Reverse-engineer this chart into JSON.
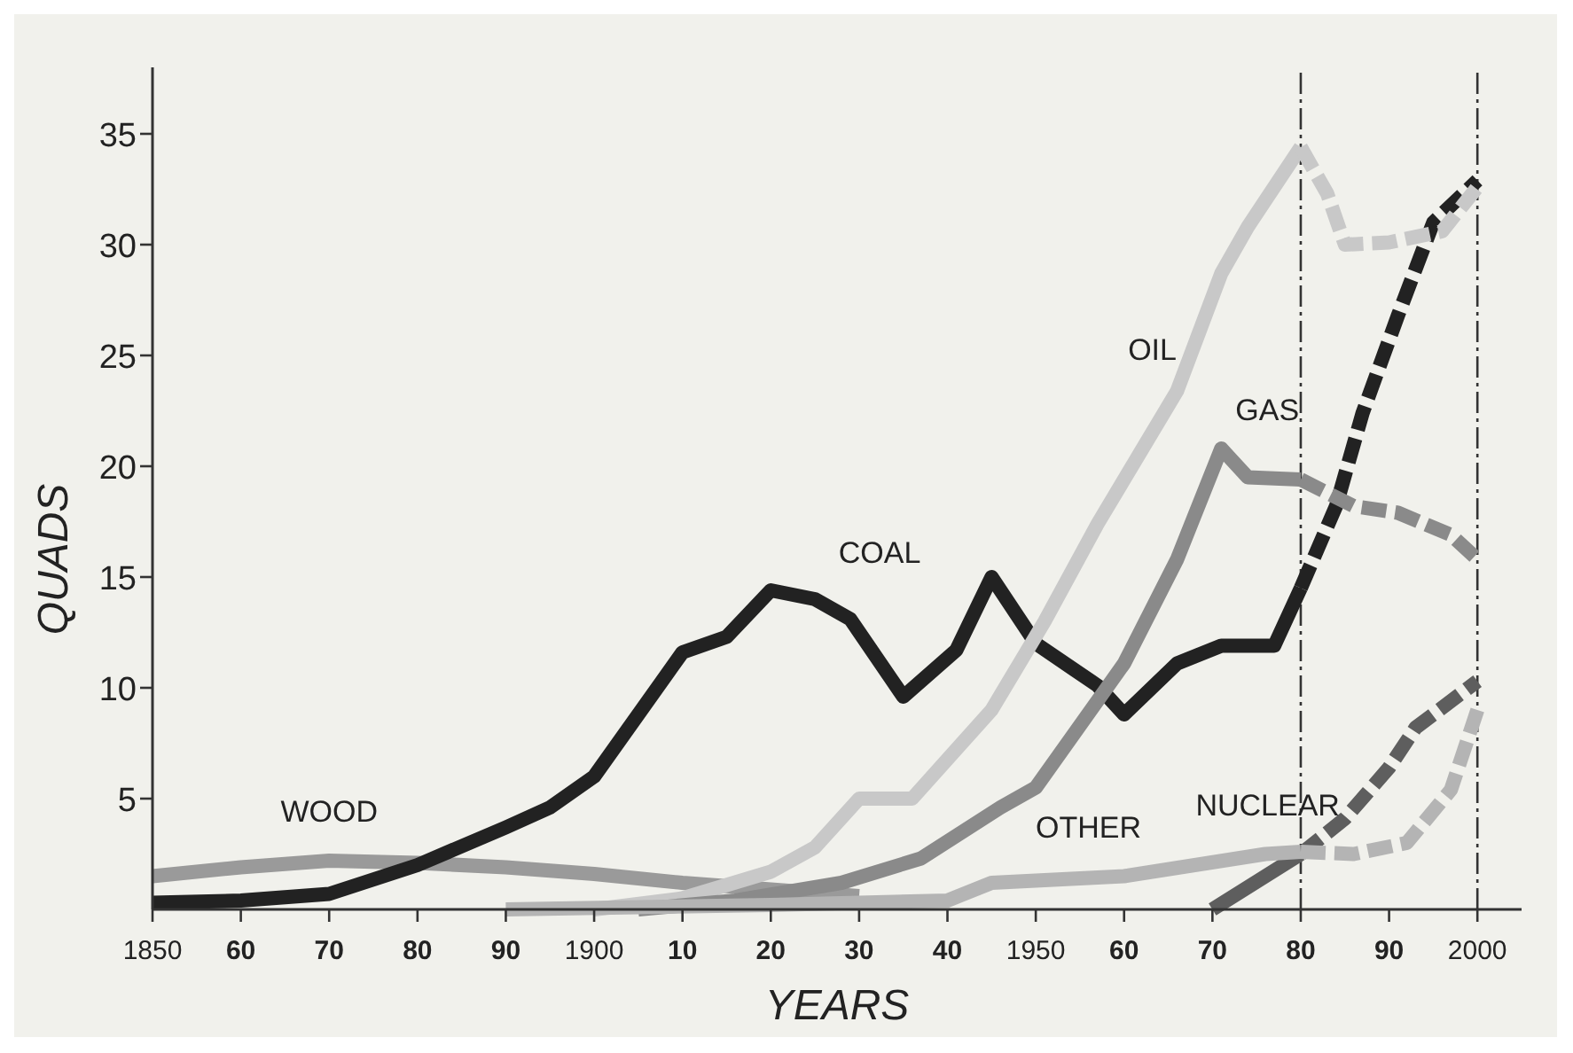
{
  "chart_data": {
    "type": "line",
    "xlabel": "YEARS",
    "ylabel": "QUADS",
    "xlim": [
      1850,
      2005
    ],
    "ylim": [
      0,
      38
    ],
    "xticks": [
      1850,
      {
        "value": 1860,
        "label": "60"
      },
      {
        "value": 1870,
        "label": "70"
      },
      {
        "value": 1880,
        "label": "80"
      },
      {
        "value": 1890,
        "label": "90"
      },
      1900,
      {
        "value": 1910,
        "label": "10"
      },
      {
        "value": 1920,
        "label": "20"
      },
      {
        "value": 1930,
        "label": "30"
      },
      {
        "value": 1940,
        "label": "40"
      },
      1950,
      {
        "value": 1960,
        "label": "60"
      },
      {
        "value": 1970,
        "label": "70"
      },
      {
        "value": 1980,
        "label": "80"
      },
      {
        "value": 1990,
        "label": "90"
      },
      2000
    ],
    "yticks": [
      5,
      10,
      15,
      20,
      25,
      30,
      35
    ],
    "grid": false,
    "ref_lines": [
      {
        "axis": "x",
        "value": 1980,
        "line_style": "dashed",
        "color": "#333333"
      },
      {
        "axis": "x",
        "value": 2000,
        "line_style": "dashed",
        "color": "#333333"
      }
    ],
    "series": [
      {
        "name": "WOOD",
        "color": "#9a9a9a",
        "x": [
          1850,
          1860,
          1870,
          1880,
          1890,
          1900,
          1910,
          1920,
          1930
        ],
        "values": [
          1.5,
          1.9,
          2.2,
          2.1,
          1.9,
          1.6,
          1.2,
          0.9,
          0.6
        ]
      },
      {
        "name": "COAL",
        "color": "#222222",
        "x": [
          1850,
          1860,
          1870,
          1880,
          1890,
          1895,
          1900,
          1910,
          1915,
          1920,
          1925,
          1929,
          1935,
          1941,
          1945,
          1950,
          1957,
          1960,
          1966,
          1971,
          1977,
          1980
        ],
        "values": [
          0.3,
          0.4,
          0.7,
          2.0,
          3.7,
          4.6,
          6.0,
          11.6,
          12.3,
          14.4,
          14.0,
          13.1,
          9.6,
          11.7,
          15.0,
          12.0,
          10.1,
          8.8,
          11.1,
          11.9,
          11.9,
          14.5
        ]
      },
      {
        "color": "#222222",
        "line_style": "dashed",
        "x": [
          1980,
          1984,
          1987,
          1991,
          1995,
          2000
        ],
        "values": [
          14.5,
          18.2,
          22.4,
          26.8,
          31.0,
          32.9
        ]
      },
      {
        "name": "OIL",
        "color": "#c8c8c8",
        "x": [
          1900,
          1910,
          1920,
          1925,
          1930,
          1936,
          1945,
          1951,
          1957,
          1966,
          1971,
          1974,
          1980
        ],
        "values": [
          0,
          0.5,
          1.7,
          2.8,
          5.0,
          5.0,
          9.0,
          13.0,
          17.4,
          23.4,
          28.7,
          30.8,
          34.4
        ]
      },
      {
        "color": "#c8c8c8",
        "line_style": "dashed",
        "x": [
          1980,
          1983,
          1985,
          1990,
          1996,
          2000
        ],
        "values": [
          34.4,
          32.3,
          30.0,
          30.1,
          30.6,
          32.6
        ]
      },
      {
        "name": "GAS",
        "color": "#8a8a8a",
        "x": [
          1905,
          1916,
          1928,
          1937,
          1946,
          1950,
          1960,
          1966,
          1971,
          1974,
          1980
        ],
        "values": [
          0,
          0.4,
          1.2,
          2.3,
          4.6,
          5.5,
          11.1,
          15.8,
          20.8,
          19.5,
          19.4
        ]
      },
      {
        "color": "#8a8a8a",
        "line_style": "dashed",
        "x": [
          1980,
          1986,
          1991,
          1997,
          2000
        ],
        "values": [
          19.4,
          18.2,
          17.9,
          16.9,
          15.8
        ]
      },
      {
        "name": "NUCLEAR",
        "color": "#5e5e5e",
        "x": [
          1970,
          1976,
          1980
        ],
        "values": [
          0,
          1.5,
          2.5
        ]
      },
      {
        "color": "#5e5e5e",
        "line_style": "dashed",
        "x": [
          1980,
          1985,
          1990,
          1993,
          2000
        ],
        "values": [
          2.5,
          4.1,
          6.4,
          8.2,
          10.3
        ]
      },
      {
        "name": "OTHER",
        "color": "#b4b4b4",
        "x": [
          1890,
          1920,
          1940,
          1945,
          1960,
          1976,
          1980
        ],
        "values": [
          0,
          0.2,
          0.4,
          1.2,
          1.5,
          2.5,
          2.6
        ]
      },
      {
        "color": "#b4b4b4",
        "line_style": "dashed",
        "x": [
          1980,
          1986,
          1992,
          1997,
          2000
        ],
        "values": [
          2.6,
          2.5,
          3.0,
          5.4,
          9.0
        ]
      }
    ]
  }
}
